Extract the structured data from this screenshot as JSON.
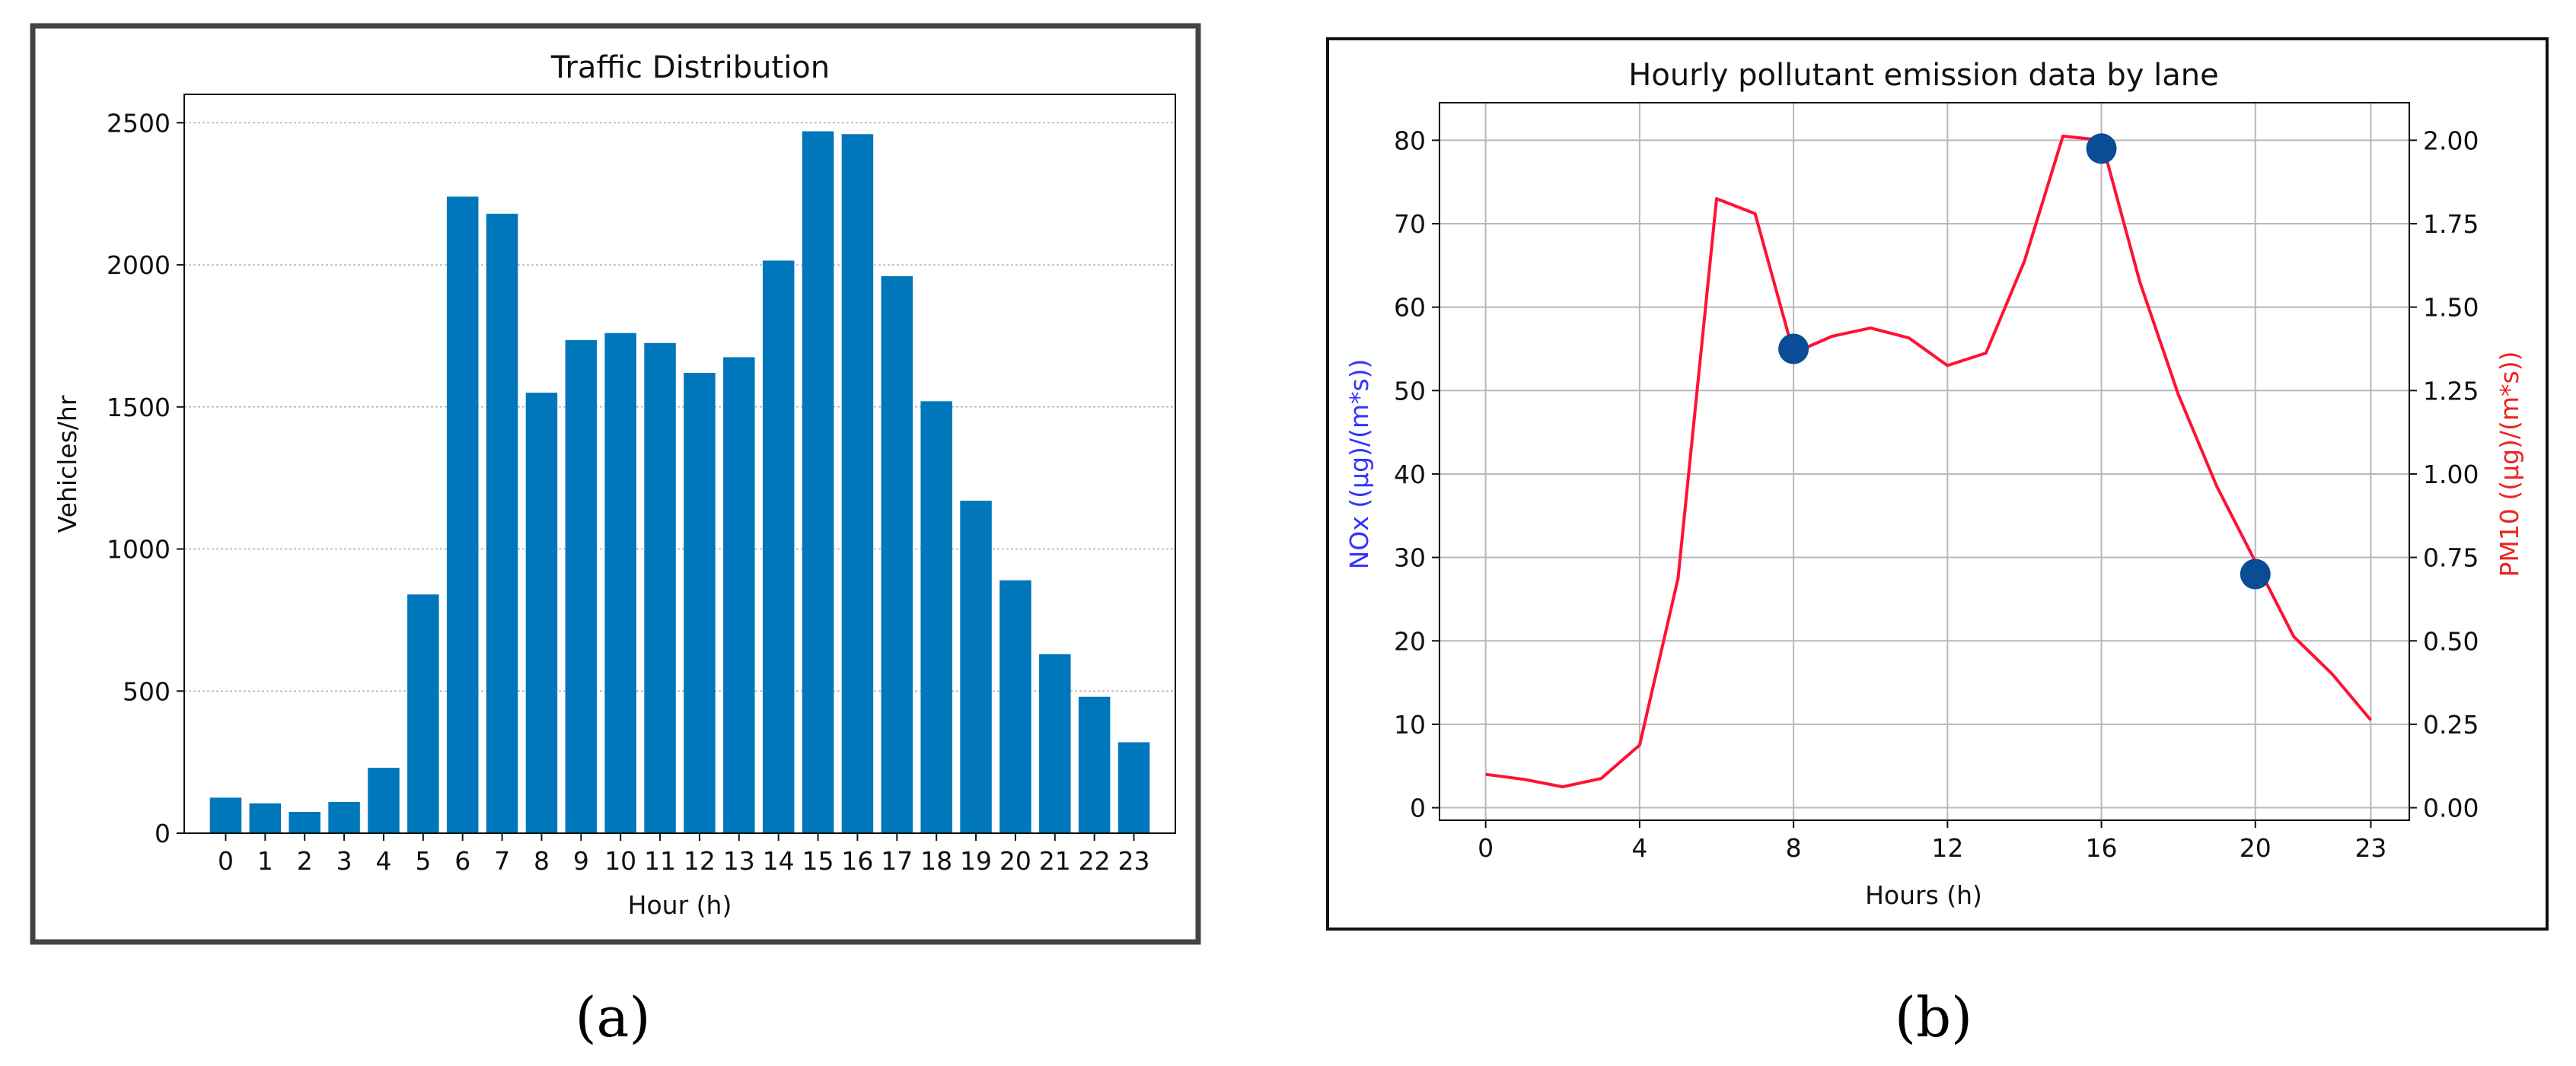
{
  "panels": [
    {
      "label": "(a)"
    },
    {
      "label": "(b)"
    }
  ],
  "chart_data": [
    {
      "type": "bar",
      "title": "Traffic Distribution",
      "xlabel": "Hour (h)",
      "ylabel": "Vehicles/hr",
      "categories": [
        "0",
        "1",
        "2",
        "3",
        "4",
        "5",
        "6",
        "7",
        "8",
        "9",
        "10",
        "11",
        "12",
        "13",
        "14",
        "15",
        "16",
        "17",
        "18",
        "19",
        "20",
        "21",
        "22",
        "23"
      ],
      "values": [
        125,
        105,
        75,
        110,
        230,
        840,
        2240,
        2180,
        1550,
        1735,
        1760,
        1725,
        1620,
        1675,
        2015,
        2470,
        2460,
        1960,
        1520,
        1170,
        890,
        630,
        480,
        320
      ],
      "ylim": [
        0,
        2600
      ],
      "yticks": [
        0,
        500,
        1000,
        1500,
        2000,
        2500
      ],
      "grid": "horizontal-dotted",
      "bar_color": "#0077bb",
      "frame_color": "#444444"
    },
    {
      "type": "line",
      "title": "Hourly pollutant emission data by lane",
      "xlabel": "Hours (h)",
      "ylabel_left": "NOx ((µg)/(m*s))",
      "ylabel_right": "PM10 ((µg)/(m*s))",
      "left_label_color": "#3333ff",
      "right_label_color": "#ee2222",
      "xlim": [
        -1.2,
        24.0
      ],
      "xticks": [
        0,
        4,
        8,
        12,
        16,
        20,
        23
      ],
      "ylim_left": [
        -1.5,
        84.5
      ],
      "yticks_left": [
        0,
        10,
        20,
        30,
        40,
        50,
        60,
        70,
        80
      ],
      "ylim_right": [
        -0.0375,
        2.1125
      ],
      "yticks_right": [
        "0.00",
        "0.25",
        "0.50",
        "0.75",
        "1.00",
        "1.25",
        "1.50",
        "1.75",
        "2.00"
      ],
      "grid": true,
      "series": [
        {
          "color": "#ff1133",
          "x": [
            0,
            1,
            2,
            3,
            4,
            5,
            6,
            7,
            8,
            9,
            10,
            11,
            12,
            13,
            14,
            15,
            16,
            17,
            18,
            19,
            20,
            21,
            22,
            23
          ],
          "y": [
            4,
            3.4,
            2.5,
            3.5,
            7.5,
            27.5,
            73,
            71.2,
            54.5,
            56.5,
            57.5,
            56.3,
            53,
            54.5,
            65.5,
            80.5,
            80,
            63,
            49.5,
            38.5,
            29.5,
            20.5,
            16,
            10.5
          ]
        }
      ],
      "markers": {
        "color": "#0a4c96",
        "points": [
          {
            "x": 8,
            "y": 55
          },
          {
            "x": 16,
            "y": 79
          },
          {
            "x": 20,
            "y": 28
          }
        ]
      },
      "frame_color": "#111111"
    }
  ]
}
